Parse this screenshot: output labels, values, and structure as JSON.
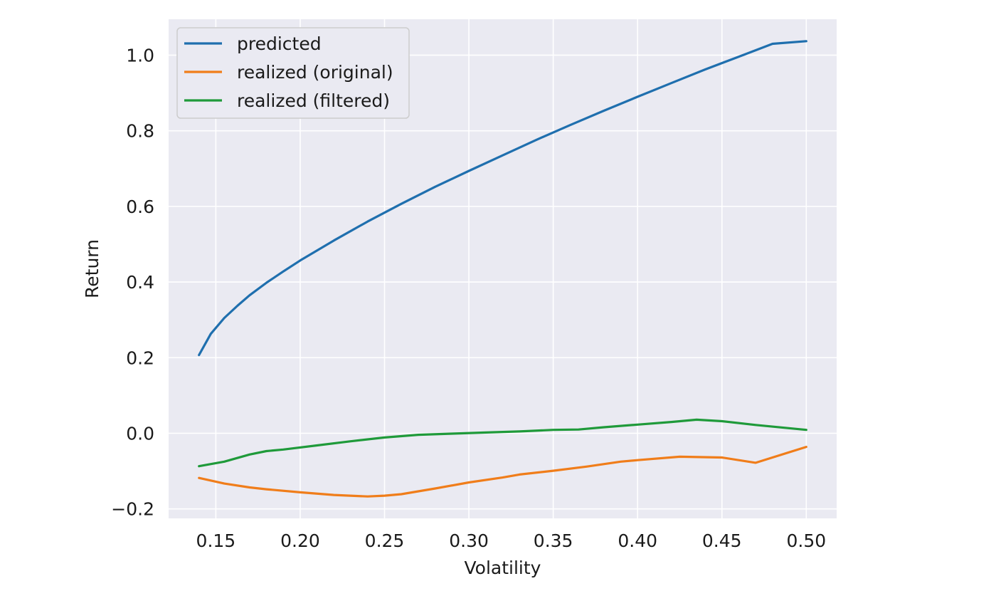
{
  "chart_data": {
    "type": "line",
    "title": "",
    "xlabel": "Volatility",
    "ylabel": "Return",
    "xlim": [
      0.122,
      0.518
    ],
    "ylim": [
      -0.225,
      1.095
    ],
    "xticks": [
      0.15,
      0.2,
      0.25,
      0.3,
      0.35,
      0.4,
      0.45,
      0.5
    ],
    "xtick_labels": [
      "0.15",
      "0.20",
      "0.25",
      "0.30",
      "0.35",
      "0.40",
      "0.45",
      "0.50"
    ],
    "yticks": [
      -0.2,
      0.0,
      0.2,
      0.4,
      0.6,
      0.8,
      1.0
    ],
    "ytick_labels": [
      "−0.2",
      "0.0",
      "0.2",
      "0.4",
      "0.6",
      "0.8",
      "1.0"
    ],
    "grid": true,
    "legend_position": "top-left",
    "series": [
      {
        "name": "predicted",
        "color": "#1f6fae",
        "points": [
          [
            0.14,
            0.207
          ],
          [
            0.147,
            0.263
          ],
          [
            0.155,
            0.305
          ],
          [
            0.163,
            0.338
          ],
          [
            0.17,
            0.365
          ],
          [
            0.18,
            0.398
          ],
          [
            0.19,
            0.428
          ],
          [
            0.2,
            0.457
          ],
          [
            0.22,
            0.51
          ],
          [
            0.24,
            0.56
          ],
          [
            0.26,
            0.607
          ],
          [
            0.28,
            0.652
          ],
          [
            0.3,
            0.694
          ],
          [
            0.32,
            0.735
          ],
          [
            0.34,
            0.776
          ],
          [
            0.36,
            0.815
          ],
          [
            0.38,
            0.853
          ],
          [
            0.4,
            0.89
          ],
          [
            0.42,
            0.926
          ],
          [
            0.44,
            0.962
          ],
          [
            0.46,
            0.996
          ],
          [
            0.48,
            1.03
          ],
          [
            0.5,
            1.037
          ]
        ]
      },
      {
        "name": "realized (original)",
        "color": "#f07d1a",
        "points": [
          [
            0.14,
            -0.118
          ],
          [
            0.155,
            -0.133
          ],
          [
            0.17,
            -0.143
          ],
          [
            0.18,
            -0.148
          ],
          [
            0.2,
            -0.156
          ],
          [
            0.22,
            -0.163
          ],
          [
            0.24,
            -0.167
          ],
          [
            0.25,
            -0.165
          ],
          [
            0.26,
            -0.161
          ],
          [
            0.28,
            -0.146
          ],
          [
            0.3,
            -0.13
          ],
          [
            0.32,
            -0.117
          ],
          [
            0.33,
            -0.109
          ],
          [
            0.35,
            -0.099
          ],
          [
            0.37,
            -0.088
          ],
          [
            0.39,
            -0.075
          ],
          [
            0.4,
            -0.071
          ],
          [
            0.425,
            -0.062
          ],
          [
            0.45,
            -0.064
          ],
          [
            0.47,
            -0.078
          ],
          [
            0.5,
            -0.036
          ]
        ]
      },
      {
        "name": "realized (filtered)",
        "color": "#1f9a3a",
        "points": [
          [
            0.14,
            -0.087
          ],
          [
            0.155,
            -0.075
          ],
          [
            0.17,
            -0.056
          ],
          [
            0.18,
            -0.047
          ],
          [
            0.19,
            -0.043
          ],
          [
            0.21,
            -0.032
          ],
          [
            0.23,
            -0.021
          ],
          [
            0.25,
            -0.011
          ],
          [
            0.27,
            -0.004
          ],
          [
            0.29,
            -0.001
          ],
          [
            0.31,
            0.002
          ],
          [
            0.33,
            0.005
          ],
          [
            0.35,
            0.009
          ],
          [
            0.365,
            0.01
          ],
          [
            0.38,
            0.016
          ],
          [
            0.4,
            0.023
          ],
          [
            0.42,
            0.03
          ],
          [
            0.435,
            0.036
          ],
          [
            0.45,
            0.032
          ],
          [
            0.47,
            0.022
          ],
          [
            0.5,
            0.009
          ]
        ]
      }
    ]
  }
}
